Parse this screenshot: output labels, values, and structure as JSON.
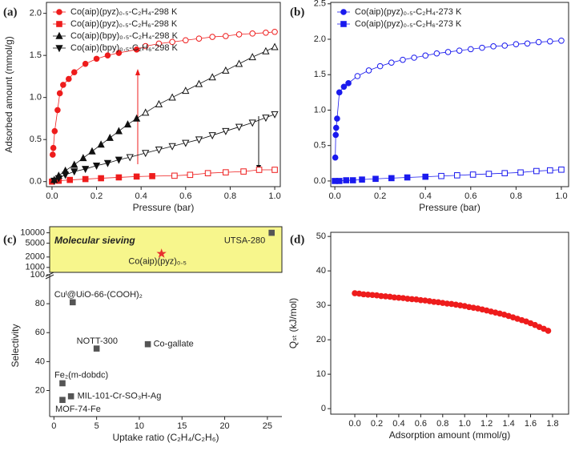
{
  "chart_data": [
    {
      "type": "scatter",
      "panel_label": "(a)",
      "x_label": "Pressure (bar)",
      "y_label": "Adsorbed amount (mmol/g)",
      "xlim": [
        -0.025,
        1.025
      ],
      "ylim": [
        -0.06,
        2.13
      ],
      "xticks": [
        {
          "value": 0,
          "label": "0.0"
        },
        0.2,
        0.4,
        0.6,
        0.8,
        {
          "value": 1,
          "label": "1.0"
        }
      ],
      "yticks": [
        {
          "value": 0,
          "label": "0.0"
        },
        0.5,
        {
          "value": 1,
          "label": "1.0"
        },
        1.5,
        {
          "value": 2,
          "label": "2.0"
        }
      ],
      "legend": "upper left",
      "series": [
        {
          "name": "Co(aip)(pyz)₀.₅-C₂H₄-298 K",
          "color": "#ee1c1c",
          "marker": "circle",
          "line": true,
          "x": [
            0.003,
            0.006,
            0.012,
            0.025,
            0.035,
            0.05,
            0.075,
            0.1,
            0.15,
            0.2,
            0.25,
            0.3,
            0.38
          ],
          "values": [
            0.32,
            0.4,
            0.6,
            0.85,
            1.05,
            1.15,
            1.22,
            1.3,
            1.4,
            1.46,
            1.5,
            1.53,
            1.57
          ],
          "open_x": [
            0.42,
            0.48,
            0.54,
            0.6,
            0.66,
            0.72,
            0.78,
            0.84,
            0.9,
            0.96,
            1.0
          ],
          "open_values": [
            1.61,
            1.64,
            1.66,
            1.68,
            1.7,
            1.72,
            1.73,
            1.75,
            1.76,
            1.77,
            1.78
          ]
        },
        {
          "name": "Co(aip)(pyz)₀.₅-C₂H₆-298 K",
          "color": "#ee1c1c",
          "marker": "square",
          "line": true,
          "x": [
            0,
            0.03,
            0.08,
            0.15,
            0.22,
            0.3,
            0.38,
            0.45
          ],
          "values": [
            0,
            0.01,
            0.02,
            0.03,
            0.04,
            0.05,
            0.06,
            0.065
          ],
          "open_x": [
            0.55,
            0.62,
            0.7,
            0.78,
            0.86,
            0.93,
            1.0
          ],
          "open_values": [
            0.07,
            0.08,
            0.1,
            0.11,
            0.12,
            0.14,
            0.14
          ]
        },
        {
          "name": "Co(aip)(bpy)₀.₅-C₂H₄-298 K",
          "color": "#111111",
          "marker": "triangle-up",
          "line": true,
          "x": [
            0.01,
            0.03,
            0.06,
            0.1,
            0.14,
            0.18,
            0.22,
            0.26,
            0.3,
            0.34,
            0.38
          ],
          "values": [
            0.02,
            0.07,
            0.13,
            0.2,
            0.28,
            0.36,
            0.44,
            0.52,
            0.6,
            0.68,
            0.75
          ],
          "open_x": [
            0.42,
            0.48,
            0.54,
            0.6,
            0.66,
            0.72,
            0.78,
            0.84,
            0.9,
            0.96,
            1.0
          ],
          "open_values": [
            0.82,
            0.92,
            1.0,
            1.08,
            1.16,
            1.24,
            1.32,
            1.4,
            1.48,
            1.55,
            1.6
          ]
        },
        {
          "name": "Co(aip)(bpy)₀.₅-C₂H₆-298 K",
          "color": "#111111",
          "marker": "triangle-down",
          "line": true,
          "x": [
            0.01,
            0.03,
            0.06,
            0.1,
            0.15,
            0.2,
            0.25,
            0.3
          ],
          "values": [
            0.01,
            0.04,
            0.08,
            0.12,
            0.15,
            0.19,
            0.22,
            0.26
          ],
          "open_x": [
            0.35,
            0.42,
            0.48,
            0.54,
            0.6,
            0.66,
            0.72,
            0.78,
            0.84,
            0.9,
            0.96,
            1.0
          ],
          "open_values": [
            0.29,
            0.34,
            0.38,
            0.42,
            0.46,
            0.5,
            0.55,
            0.6,
            0.65,
            0.7,
            0.76,
            0.8
          ]
        }
      ]
    },
    {
      "type": "scatter",
      "panel_label": "(b)",
      "x_label": "Pressure (bar)",
      "xlim": [
        -0.018,
        1.032
      ],
      "ylim": [
        -0.08,
        2.52
      ],
      "xticks": [
        {
          "value": 0,
          "label": "0.0"
        },
        0.2,
        0.4,
        0.6,
        0.8,
        {
          "value": 1,
          "label": "1.0"
        }
      ],
      "yticks": [
        {
          "value": 0,
          "label": "0.0"
        },
        0.5,
        {
          "value": 1,
          "label": "1.0"
        },
        1.5,
        {
          "value": 2,
          "label": "2.0"
        },
        2.5
      ],
      "legend": "upper left",
      "series": [
        {
          "name": "Co(aip)(pyz)₀.₅-C₂H₄-273 K",
          "color": "#1a1aee",
          "marker": "circle",
          "line": true,
          "x": [
            0.002,
            0.004,
            0.006,
            0.01,
            0.02,
            0.04,
            0.06
          ],
          "values": [
            0.33,
            0.65,
            0.75,
            0.88,
            1.25,
            1.33,
            1.38
          ],
          "open_x": [
            0.1,
            0.15,
            0.2,
            0.25,
            0.3,
            0.35,
            0.4,
            0.45,
            0.5,
            0.55,
            0.6,
            0.65,
            0.7,
            0.75,
            0.8,
            0.85,
            0.9,
            0.95,
            1.0
          ],
          "open_values": [
            1.48,
            1.56,
            1.62,
            1.67,
            1.71,
            1.74,
            1.77,
            1.8,
            1.82,
            1.84,
            1.86,
            1.88,
            1.9,
            1.91,
            1.93,
            1.94,
            1.96,
            1.97,
            1.98
          ]
        },
        {
          "name": "Co(aip)(pyz)₀.₅-C₂H₆-273 K",
          "color": "#1a1aee",
          "marker": "square",
          "line": true,
          "x": [
            0,
            0.02,
            0.05,
            0.08,
            0.12,
            0.18,
            0.25,
            0.32,
            0.4
          ],
          "values": [
            0,
            0,
            0.01,
            0.01,
            0.02,
            0.03,
            0.04,
            0.05,
            0.06
          ],
          "open_x": [
            0.47,
            0.54,
            0.61,
            0.68,
            0.75,
            0.82,
            0.89,
            0.95,
            1.0
          ],
          "open_values": [
            0.07,
            0.08,
            0.09,
            0.1,
            0.11,
            0.12,
            0.14,
            0.15,
            0.16
          ]
        }
      ]
    },
    {
      "type": "scatter",
      "panel_label": "(c)",
      "x_label": "Uptake ratio (C₂H₄/C₂H₆)",
      "y_label": "Selectivity",
      "xlim": [
        -0.5,
        26.7
      ],
      "ylim": [
        2,
        100
      ],
      "xticks": [
        0,
        5,
        10,
        15,
        20,
        25
      ],
      "yticks": [
        20,
        40,
        60,
        80,
        100
      ],
      "y_upper_lim": [
        720,
        15000
      ],
      "y_upper_ticks": [
        1000,
        2000,
        5000,
        10000
      ],
      "y_upper_log": true,
      "box_label": "Molecular sieving",
      "box_color": "#f7f68c",
      "series": [
        {
          "color": "#555555",
          "marker": "square",
          "labels": [
            "Cuᴵ@UiO-66-(COOH)₂",
            "NOTT-300",
            "Co-gallate",
            "Fe₂(m-dobdc)",
            "MIL-101-Cr-SO₃H-Ag",
            "MOF-74-Fe"
          ],
          "x": [
            2.2,
            5,
            11,
            1,
            2,
            1
          ],
          "values": [
            81,
            49,
            52,
            25,
            16,
            13.5
          ]
        },
        {
          "axis": "upper",
          "color": "#555555",
          "marker": "square",
          "labels": [
            "UTSA-280"
          ],
          "x": [
            25.5
          ],
          "values": [
            10000
          ]
        },
        {
          "axis": "upper",
          "color": "#e83030",
          "marker": "star",
          "labels": [
            "Co(aip)(pyz)₀.₅"
          ],
          "x": [
            12.6
          ],
          "values": [
            2500
          ]
        }
      ]
    },
    {
      "type": "scatter",
      "panel_label": "(d)",
      "x_label": "Adsorption amount (mmol/g)",
      "y_label": "Qₛₜ (kJ/mol)",
      "xlim": [
        -0.219,
        1.946
      ],
      "ylim": [
        -1.6,
        51.2
      ],
      "xticks": [
        {
          "value": 0,
          "label": "0.0"
        },
        0.2,
        0.4,
        0.6,
        0.8,
        {
          "value": 1,
          "label": "1.0"
        },
        1.2,
        1.4,
        1.6,
        1.8
      ],
      "yticks": [
        0,
        10,
        20,
        30,
        40,
        50
      ],
      "series": [
        {
          "color": "#ee1c1c",
          "marker": "circle",
          "x": [
            0,
            0.04,
            0.08,
            0.12,
            0.16,
            0.2,
            0.24,
            0.28,
            0.32,
            0.36,
            0.4,
            0.44,
            0.48,
            0.52,
            0.56,
            0.6,
            0.64,
            0.68,
            0.72,
            0.76,
            0.8,
            0.84,
            0.88,
            0.92,
            0.96,
            1.0,
            1.04,
            1.08,
            1.12,
            1.16,
            1.2,
            1.24,
            1.28,
            1.32,
            1.36,
            1.4,
            1.44,
            1.48,
            1.52,
            1.56,
            1.6,
            1.64,
            1.68,
            1.72,
            1.76
          ],
          "values": [
            33.5,
            33.4,
            33.2,
            33.1,
            33.0,
            32.9,
            32.7,
            32.6,
            32.5,
            32.3,
            32.2,
            32.1,
            31.9,
            31.8,
            31.7,
            31.5,
            31.4,
            31.2,
            31.0,
            30.9,
            30.7,
            30.5,
            30.4,
            30.2,
            30.0,
            29.8,
            29.5,
            29.3,
            29.1,
            28.8,
            28.5,
            28.2,
            27.9,
            27.6,
            27.3,
            26.9,
            26.5,
            26.1,
            25.7,
            25.3,
            24.8,
            24.3,
            23.7,
            23.2,
            22.6
          ]
        }
      ]
    }
  ]
}
